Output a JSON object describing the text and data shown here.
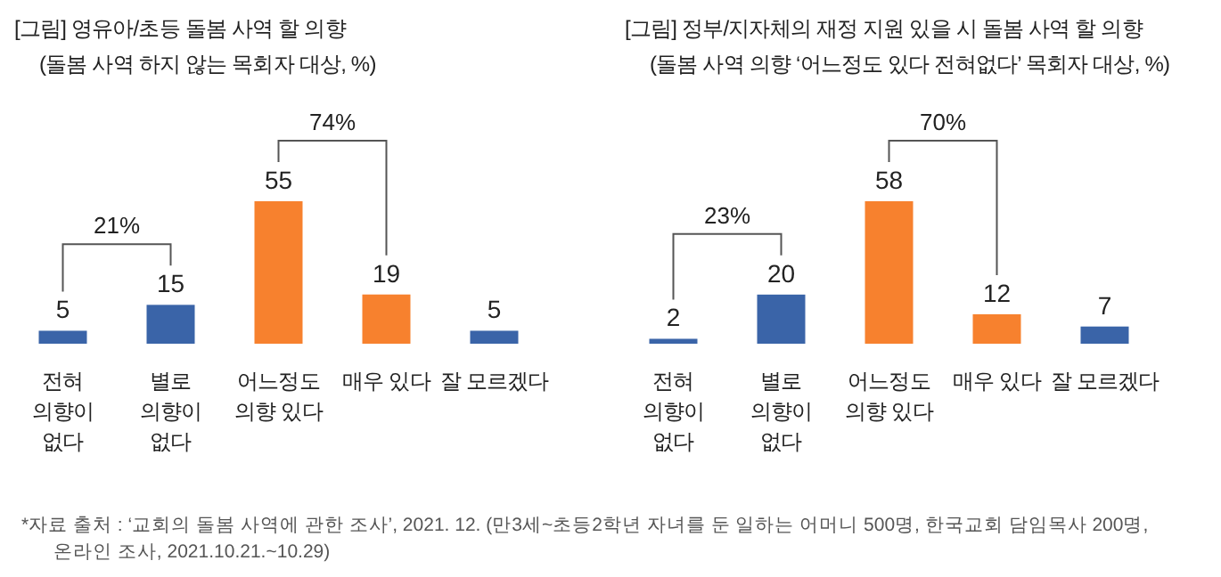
{
  "chart_data": [
    {
      "type": "bar",
      "title": "[그림] 영유아/초등 돌봄 사역 할 의향",
      "subtitle": "(돌봄 사역 하지 않는 목회자 대상, %)",
      "categories": [
        "전혀\n의향이\n없다",
        "별로\n의향이\n없다",
        "어느정도\n의향 있다",
        "매우 있다",
        "잘 모르겠다"
      ],
      "values": [
        5,
        15,
        55,
        19,
        5
      ],
      "colors": [
        "#3a64a8",
        "#3a64a8",
        "#f7812e",
        "#f7812e",
        "#3a64a8"
      ],
      "data_labels": true,
      "annotations": [
        "21%",
        "74%"
      ]
    },
    {
      "type": "bar",
      "title": "[그림] 정부/지자체의 재정 지원 있을 시 돌봄 사역 할 의향",
      "subtitle": "(돌봄 사역 의향 ‘어느정도 있다 전혀없다’ 목회자 대상, %)",
      "categories": [
        "전혀\n의향이\n없다",
        "별로\n의향이\n없다",
        "어느정도\n의향 있다",
        "매우 있다",
        "잘 모르겠다"
      ],
      "values": [
        2,
        20,
        58,
        12,
        7
      ],
      "colors": [
        "#3a64a8",
        "#3a64a8",
        "#f7812e",
        "#f7812e",
        "#3a64a8"
      ],
      "data_labels": true,
      "annotations": [
        "23%",
        "70%",
        "*자료 출처 : ‘교회의 돌봄 사역에 관한 조사’, 2021. 12. (만3세~초등2학년 자녀를 둔 일하는 어머니 500명, 한국교회 담임목사 200명, 온라인 조사, 2021.10.21.~10.29)"
      ]
    }
  ]
}
